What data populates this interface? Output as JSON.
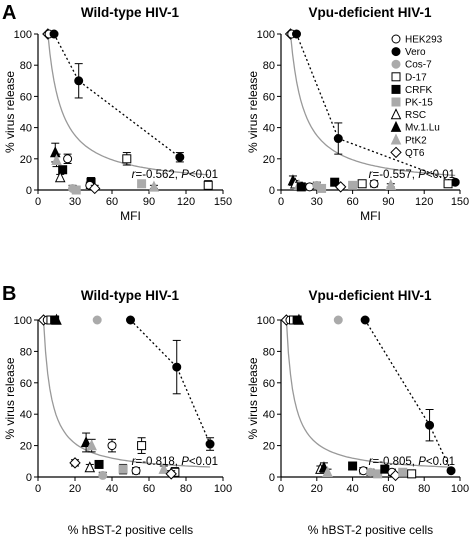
{
  "figure": {
    "panel_labels": [
      "A",
      "B"
    ],
    "legend": [
      {
        "name": "HEK293",
        "marker": "circle",
        "fill": "open"
      },
      {
        "name": "Vero",
        "marker": "circle",
        "fill": "black"
      },
      {
        "name": "Cos-7",
        "marker": "circle",
        "fill": "gray"
      },
      {
        "name": "D-17",
        "marker": "square",
        "fill": "open"
      },
      {
        "name": "CRFK",
        "marker": "square",
        "fill": "black"
      },
      {
        "name": "PK-15",
        "marker": "square",
        "fill": "gray"
      },
      {
        "name": "RSC",
        "marker": "triangle",
        "fill": "open"
      },
      {
        "name": "Mv.1.Lu",
        "marker": "triangle",
        "fill": "black"
      },
      {
        "name": "PtK2",
        "marker": "triangle",
        "fill": "gray"
      },
      {
        "name": "QT6",
        "marker": "diamond",
        "fill": "open"
      }
    ],
    "colors": {
      "black": "#000000",
      "gray": "#aaaaaa",
      "fit_line": "#999999"
    }
  },
  "chart_data": [
    {
      "type": "scatter",
      "panel": "A",
      "title": "Wild-type HIV-1",
      "xlabel": "MFI",
      "ylabel": "% virus release",
      "xlim": [
        0,
        150
      ],
      "ylim": [
        0,
        100
      ],
      "xticks": [
        "0",
        "30",
        "60",
        "90",
        "120",
        "150"
      ],
      "yticks": [
        "0",
        "20",
        "40",
        "60",
        "80",
        "100"
      ],
      "stat": {
        "r": "r=-0.562,",
        "p": " P<0.01"
      },
      "fit_curve": "hyperbolic decay (gray solid line)",
      "vero_line": "dotted",
      "points": [
        {
          "cell": "QT6",
          "x": 8,
          "y": 100,
          "err": 0
        },
        {
          "cell": "HEK293",
          "x": 9,
          "y": 100,
          "err": 0
        },
        {
          "cell": "Vero",
          "x": 13,
          "y": 100,
          "err": 0
        },
        {
          "cell": "Vero",
          "x": 33,
          "y": 70,
          "err": 11
        },
        {
          "cell": "Vero",
          "x": 115,
          "y": 21,
          "err": 3
        },
        {
          "cell": "Mv.1.Lu",
          "x": 14,
          "y": 24,
          "err": 6
        },
        {
          "cell": "PtK2",
          "x": 15,
          "y": 19,
          "err": 4
        },
        {
          "cell": "HEK293",
          "x": 24,
          "y": 20,
          "err": 3
        },
        {
          "cell": "CRFK",
          "x": 20,
          "y": 13,
          "err": 2
        },
        {
          "cell": "RSC",
          "x": 18,
          "y": 8,
          "err": 2
        },
        {
          "cell": "Cos-7",
          "x": 28,
          "y": 1,
          "err": 2
        },
        {
          "cell": "PK-15",
          "x": 31,
          "y": 0,
          "err": 2
        },
        {
          "cell": "CRFK",
          "x": 43,
          "y": 5,
          "err": 3
        },
        {
          "cell": "HEK293",
          "x": 42,
          "y": 3,
          "err": 2
        },
        {
          "cell": "QT6",
          "x": 46,
          "y": 1,
          "err": 2
        },
        {
          "cell": "D-17",
          "x": 72,
          "y": 20,
          "err": 4
        },
        {
          "cell": "PK-15",
          "x": 84,
          "y": 4,
          "err": 2
        },
        {
          "cell": "PtK2",
          "x": 94,
          "y": 2,
          "err": 1
        },
        {
          "cell": "D-17",
          "x": 138,
          "y": 3,
          "err": 3
        }
      ]
    },
    {
      "type": "scatter",
      "panel": "A",
      "title": "Vpu-deficient HIV-1",
      "xlabel": "MFI",
      "ylabel": "% virus release",
      "xlim": [
        0,
        150
      ],
      "ylim": [
        0,
        100
      ],
      "xticks": [
        "0",
        "30",
        "60",
        "90",
        "120",
        "150"
      ],
      "yticks": [
        "0",
        "20",
        "40",
        "60",
        "80",
        "100"
      ],
      "stat": {
        "r": "r=-0.557,",
        "p": " P<0.01"
      },
      "fit_curve": "hyperbolic decay (gray solid line)",
      "vero_line": "dotted",
      "points": [
        {
          "cell": "QT6",
          "x": 8,
          "y": 100,
          "err": 0
        },
        {
          "cell": "HEK293",
          "x": 9,
          "y": 100,
          "err": 0
        },
        {
          "cell": "Vero",
          "x": 13,
          "y": 100,
          "err": 0
        },
        {
          "cell": "Vero",
          "x": 48,
          "y": 33,
          "err": 10
        },
        {
          "cell": "Vero",
          "x": 146,
          "y": 5,
          "err": 1
        },
        {
          "cell": "Mv.1.Lu",
          "x": 10,
          "y": 6,
          "err": 3
        },
        {
          "cell": "RSC",
          "x": 12,
          "y": 4,
          "err": 2
        },
        {
          "cell": "PtK2",
          "x": 15,
          "y": 3,
          "err": 2
        },
        {
          "cell": "CRFK",
          "x": 17,
          "y": 2,
          "err": 2
        },
        {
          "cell": "HEK293",
          "x": 24,
          "y": 2,
          "err": 2
        },
        {
          "cell": "Cos-7",
          "x": 30,
          "y": 3,
          "err": 2
        },
        {
          "cell": "PK-15",
          "x": 34,
          "y": 1,
          "err": 2
        },
        {
          "cell": "CRFK",
          "x": 45,
          "y": 5,
          "err": 2
        },
        {
          "cell": "QT6",
          "x": 50,
          "y": 2,
          "err": 1
        },
        {
          "cell": "PK-15",
          "x": 60,
          "y": 3,
          "err": 2
        },
        {
          "cell": "D-17",
          "x": 68,
          "y": 4,
          "err": 2
        },
        {
          "cell": "HEK293",
          "x": 78,
          "y": 4,
          "err": 2
        },
        {
          "cell": "PtK2",
          "x": 92,
          "y": 3,
          "err": 1
        },
        {
          "cell": "D-17",
          "x": 140,
          "y": 4,
          "err": 2
        }
      ]
    },
    {
      "type": "scatter",
      "panel": "B",
      "title": "Wild-type HIV-1",
      "xlabel": "% hBST-2 positive cells",
      "ylabel": "% virus release",
      "xlim": [
        0,
        100
      ],
      "ylim": [
        0,
        100
      ],
      "xticks": [
        "0",
        "20",
        "40",
        "60",
        "80",
        "100"
      ],
      "yticks": [
        "0",
        "20",
        "40",
        "60",
        "80",
        "100"
      ],
      "stat": {
        "r": "r=-0.818,",
        "p": " P<0.01"
      },
      "fit_curve": "hyperbolic decay (gray solid line)",
      "vero_line": "dotted",
      "points": [
        {
          "cell": "QT6",
          "x": 3,
          "y": 100,
          "err": 0
        },
        {
          "cell": "HEK293",
          "x": 5,
          "y": 100,
          "err": 0
        },
        {
          "cell": "D-17",
          "x": 7,
          "y": 100,
          "err": 0
        },
        {
          "cell": "CRFK",
          "x": 9,
          "y": 100,
          "err": 0
        },
        {
          "cell": "Mv.1.Lu",
          "x": 10,
          "y": 100,
          "err": 0
        },
        {
          "cell": "Cos-7",
          "x": 32,
          "y": 100,
          "err": 0
        },
        {
          "cell": "Vero",
          "x": 50,
          "y": 100,
          "err": 0
        },
        {
          "cell": "Vero",
          "x": 75,
          "y": 70,
          "err": 17
        },
        {
          "cell": "Vero",
          "x": 93,
          "y": 21,
          "err": 4
        },
        {
          "cell": "QT6",
          "x": 20,
          "y": 9,
          "err": 2
        },
        {
          "cell": "Mv.1.Lu",
          "x": 26,
          "y": 22,
          "err": 6
        },
        {
          "cell": "PtK2",
          "x": 29,
          "y": 20,
          "err": 4
        },
        {
          "cell": "HEK293",
          "x": 40,
          "y": 20,
          "err": 4
        },
        {
          "cell": "RSC",
          "x": 28,
          "y": 6,
          "err": 2
        },
        {
          "cell": "CRFK",
          "x": 33,
          "y": 8,
          "err": 2
        },
        {
          "cell": "Cos-7",
          "x": 35,
          "y": 1,
          "err": 2
        },
        {
          "cell": "PK-15",
          "x": 46,
          "y": 5,
          "err": 3
        },
        {
          "cell": "HEK293",
          "x": 53,
          "y": 4,
          "err": 2
        },
        {
          "cell": "D-17",
          "x": 56,
          "y": 20,
          "err": 5
        },
        {
          "cell": "PtK2",
          "x": 68,
          "y": 5,
          "err": 2
        },
        {
          "cell": "D-17",
          "x": 74,
          "y": 3,
          "err": 3
        },
        {
          "cell": "QT6",
          "x": 72,
          "y": 2,
          "err": 2
        }
      ]
    },
    {
      "type": "scatter",
      "panel": "B",
      "title": "Vpu-deficient HIV-1",
      "xlabel": "% hBST-2 positive cells",
      "ylabel": "% virus release",
      "xlim": [
        0,
        100
      ],
      "ylim": [
        0,
        100
      ],
      "xticks": [
        "0",
        "20",
        "40",
        "60",
        "80",
        "100"
      ],
      "yticks": [
        "0",
        "20",
        "40",
        "60",
        "80",
        "100"
      ],
      "stat": {
        "r": "r=-0.805,",
        "p": " P<0.01"
      },
      "fit_curve": "hyperbolic decay (gray solid line)",
      "vero_line": "dotted",
      "points": [
        {
          "cell": "QT6",
          "x": 3,
          "y": 100,
          "err": 0
        },
        {
          "cell": "HEK293",
          "x": 5,
          "y": 100,
          "err": 0
        },
        {
          "cell": "D-17",
          "x": 7,
          "y": 100,
          "err": 0
        },
        {
          "cell": "CRFK",
          "x": 9,
          "y": 100,
          "err": 0
        },
        {
          "cell": "Mv.1.Lu",
          "x": 10,
          "y": 100,
          "err": 0
        },
        {
          "cell": "Cos-7",
          "x": 32,
          "y": 100,
          "err": 0
        },
        {
          "cell": "Vero",
          "x": 47,
          "y": 100,
          "err": 0
        },
        {
          "cell": "Vero",
          "x": 83,
          "y": 33,
          "err": 10
        },
        {
          "cell": "Vero",
          "x": 95,
          "y": 4,
          "err": 1
        },
        {
          "cell": "RSC",
          "x": 22,
          "y": 5,
          "err": 2
        },
        {
          "cell": "Mv.1.Lu",
          "x": 24,
          "y": 6,
          "err": 3
        },
        {
          "cell": "PtK2",
          "x": 26,
          "y": 3,
          "err": 2
        },
        {
          "cell": "CRFK",
          "x": 40,
          "y": 7,
          "err": 2
        },
        {
          "cell": "HEK293",
          "x": 46,
          "y": 4,
          "err": 2
        },
        {
          "cell": "Cos-7",
          "x": 50,
          "y": 3,
          "err": 2
        },
        {
          "cell": "PK-15",
          "x": 54,
          "y": 2,
          "err": 2
        },
        {
          "cell": "CRFK",
          "x": 58,
          "y": 5,
          "err": 2
        },
        {
          "cell": "HEK293",
          "x": 62,
          "y": 3,
          "err": 2
        },
        {
          "cell": "QT6",
          "x": 64,
          "y": 1,
          "err": 1
        },
        {
          "cell": "PK-15",
          "x": 68,
          "y": 3,
          "err": 2
        },
        {
          "cell": "D-17",
          "x": 73,
          "y": 2,
          "err": 2
        }
      ]
    }
  ]
}
